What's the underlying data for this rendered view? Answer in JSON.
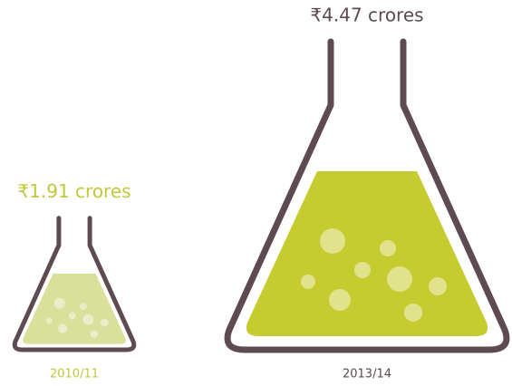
{
  "chart_data": {
    "type": "pictorial",
    "categories": [
      "2010/11",
      "2013/14"
    ],
    "values": [
      1.91,
      4.47
    ],
    "value_labels": [
      "₹1.91 crores",
      "₹4.47 crores"
    ],
    "colors": [
      "#d9e09c",
      "#c6cc2f"
    ],
    "label_colors": [
      "#c3c83a",
      "#5b4a4f"
    ],
    "outline_color": "#5e4b50"
  }
}
